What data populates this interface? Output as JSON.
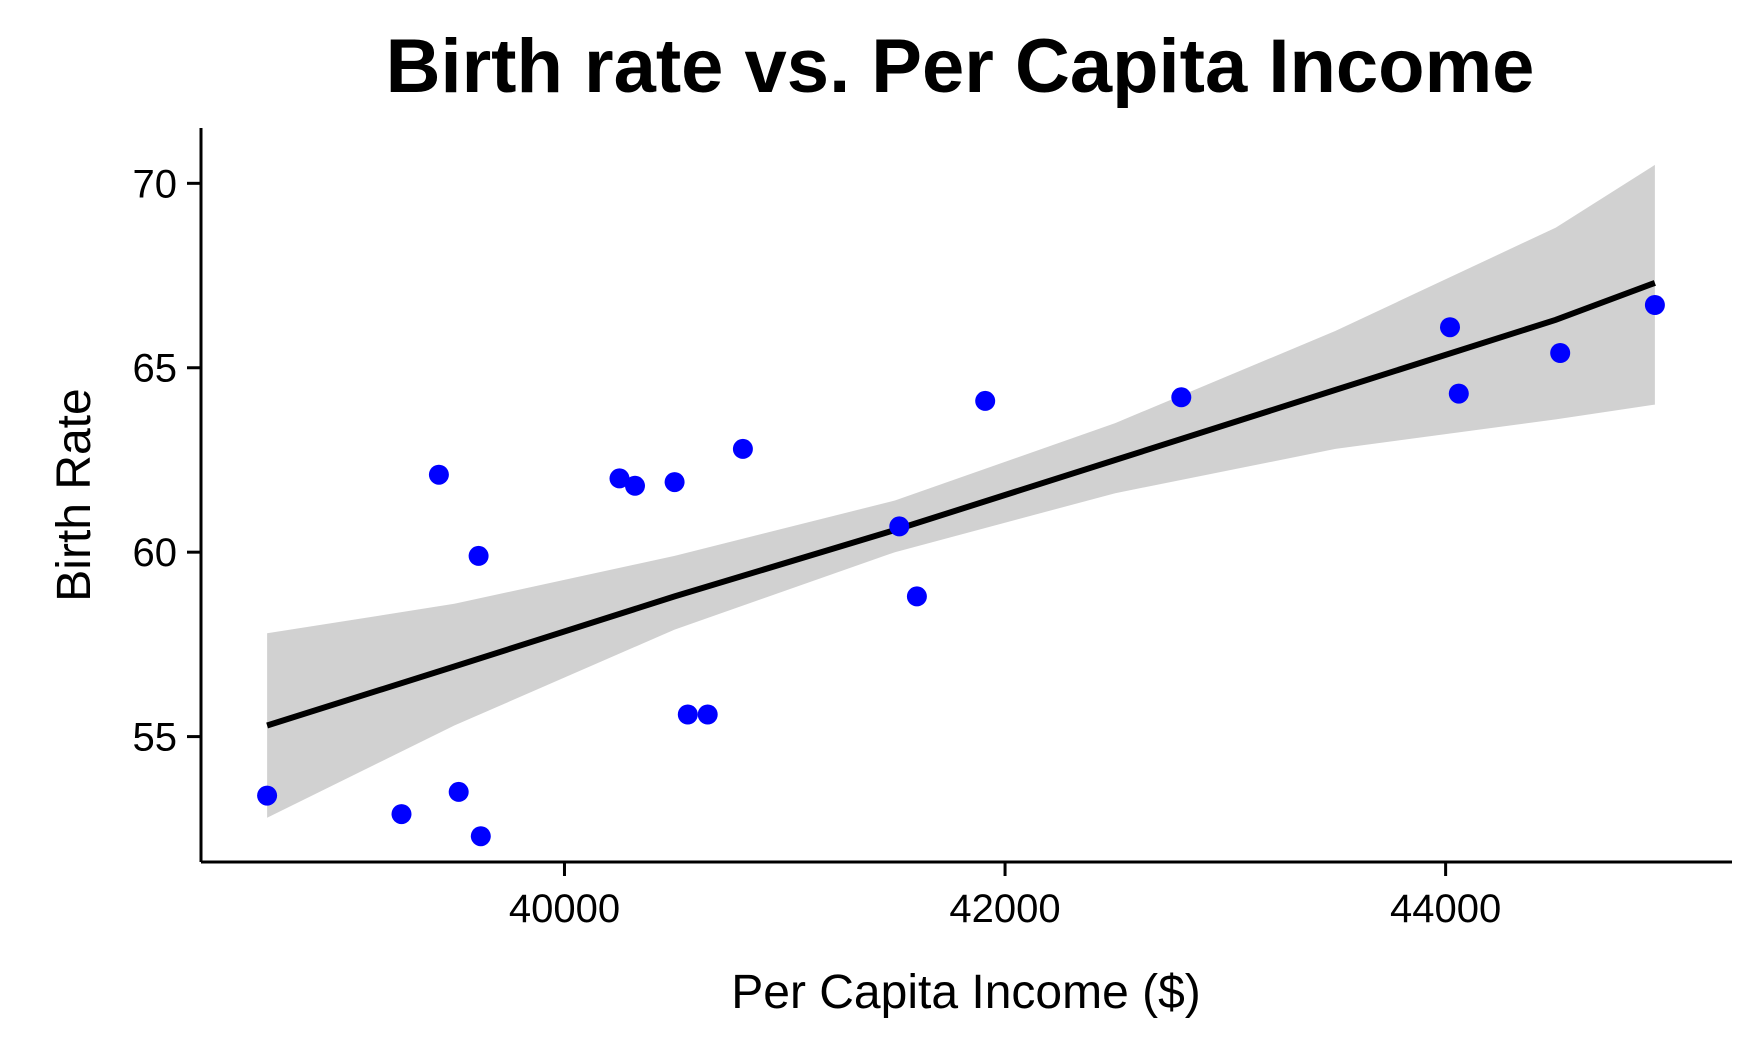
{
  "chart_data": {
    "type": "scatter",
    "title": "Birth rate vs. Per Capita Income",
    "xlabel": "Per Capita Income ($)",
    "ylabel": "Birth Rate",
    "xlim": [
      38350,
      45300
    ],
    "ylim": [
      51.6,
      71.5
    ],
    "x_ticks": [
      40000,
      42000,
      44000
    ],
    "y_ticks": [
      55,
      60,
      65,
      70
    ],
    "grid": false,
    "legend": "none",
    "point_color": "#0000ff",
    "fit_line_color": "#000000",
    "ci_band_color": "#cccccc",
    "series": [
      {
        "points": [
          {
            "x": 38650,
            "y": 53.4
          },
          {
            "x": 39260,
            "y": 52.9
          },
          {
            "x": 39430,
            "y": 62.1
          },
          {
            "x": 39520,
            "y": 53.5
          },
          {
            "x": 39610,
            "y": 59.9
          },
          {
            "x": 39620,
            "y": 52.3
          },
          {
            "x": 40250,
            "y": 62.0
          },
          {
            "x": 40320,
            "y": 61.8
          },
          {
            "x": 40500,
            "y": 61.9
          },
          {
            "x": 40560,
            "y": 55.6
          },
          {
            "x": 40650,
            "y": 55.6
          },
          {
            "x": 40810,
            "y": 62.8
          },
          {
            "x": 41520,
            "y": 60.7
          },
          {
            "x": 41600,
            "y": 58.8
          },
          {
            "x": 41910,
            "y": 64.1
          },
          {
            "x": 42800,
            "y": 64.2
          },
          {
            "x": 44020,
            "y": 66.1
          },
          {
            "x": 44060,
            "y": 64.3
          },
          {
            "x": 44520,
            "y": 65.4
          },
          {
            "x": 44950,
            "y": 66.7
          }
        ]
      }
    ],
    "fit": {
      "x": [
        38650,
        39500,
        40500,
        41500,
        42500,
        43500,
        44500,
        44950
      ],
      "y": [
        55.3,
        56.9,
        58.8,
        60.6,
        62.5,
        64.4,
        66.3,
        67.3
      ],
      "lower": [
        52.8,
        55.3,
        57.9,
        60.0,
        61.6,
        62.8,
        63.6,
        64.0
      ],
      "upper": [
        57.8,
        58.6,
        59.9,
        61.4,
        63.5,
        66.0,
        68.8,
        70.5
      ]
    }
  }
}
